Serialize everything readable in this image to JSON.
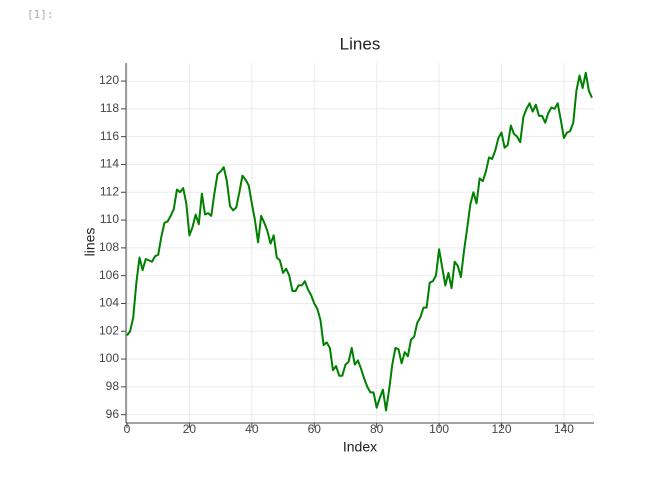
{
  "cell_prompt": "[1]:",
  "chart_data": {
    "type": "line",
    "title": "Lines",
    "xlabel": "Index",
    "ylabel": "lines",
    "x": [
      0,
      1,
      2,
      3,
      4,
      5,
      6,
      7,
      8,
      9,
      10,
      11,
      12,
      13,
      14,
      15,
      16,
      17,
      18,
      19,
      20,
      21,
      22,
      23,
      24,
      25,
      26,
      27,
      28,
      29,
      30,
      31,
      32,
      33,
      34,
      35,
      36,
      37,
      38,
      39,
      40,
      41,
      42,
      43,
      44,
      45,
      46,
      47,
      48,
      49,
      50,
      51,
      52,
      53,
      54,
      55,
      56,
      57,
      58,
      59,
      60,
      61,
      62,
      63,
      64,
      65,
      66,
      67,
      68,
      69,
      70,
      71,
      72,
      73,
      74,
      75,
      76,
      77,
      78,
      79,
      80,
      81,
      82,
      83,
      84,
      85,
      86,
      87,
      88,
      89,
      90,
      91,
      92,
      93,
      94,
      95,
      96,
      97,
      98,
      99,
      100,
      101,
      102,
      103,
      104,
      105,
      106,
      107,
      108,
      109,
      110,
      111,
      112,
      113,
      114,
      115,
      116,
      117,
      118,
      119,
      120,
      121,
      122,
      123,
      124,
      125,
      126,
      127,
      128,
      129,
      130,
      131,
      132,
      133,
      134,
      135,
      136,
      137,
      138,
      139,
      140,
      141,
      142,
      143,
      144,
      145,
      146,
      147,
      148,
      149
    ],
    "series": [
      {
        "name": "lines",
        "color": "#008000",
        "values": [
          101.7,
          102.0,
          103.0,
          105.5,
          107.3,
          106.4,
          107.2,
          107.1,
          107.0,
          107.4,
          107.5,
          108.8,
          109.8,
          109.9,
          110.3,
          110.8,
          112.2,
          112.0,
          112.3,
          111.2,
          108.9,
          109.5,
          110.4,
          109.7,
          111.9,
          110.4,
          110.5,
          110.3,
          111.9,
          113.3,
          113.5,
          113.8,
          112.8,
          111.0,
          110.7,
          110.9,
          112.0,
          113.2,
          112.9,
          112.5,
          111.2,
          110.0,
          108.4,
          110.3,
          109.8,
          109.2,
          108.3,
          108.9,
          107.3,
          107.1,
          106.2,
          106.5,
          106.0,
          104.9,
          104.9,
          105.3,
          105.3,
          105.6,
          105.0,
          104.6,
          104.0,
          103.6,
          102.8,
          101.0,
          101.2,
          100.8,
          99.2,
          99.5,
          98.8,
          98.8,
          99.6,
          99.8,
          100.8,
          99.6,
          99.9,
          99.3,
          98.6,
          98.0,
          97.6,
          97.6,
          96.5,
          97.2,
          97.8,
          96.3,
          97.8,
          99.6,
          100.8,
          100.7,
          99.7,
          100.5,
          100.2,
          101.4,
          101.6,
          102.6,
          103.0,
          103.7,
          103.7,
          105.5,
          105.6,
          106.0,
          107.9,
          106.6,
          105.3,
          106.2,
          105.1,
          107.0,
          106.7,
          105.9,
          107.8,
          109.4,
          111.1,
          112.0,
          111.2,
          113.0,
          112.8,
          113.5,
          114.5,
          114.4,
          115.0,
          115.9,
          116.3,
          115.2,
          115.4,
          116.8,
          116.2,
          116.0,
          115.6,
          117.4,
          118.0,
          118.4,
          117.8,
          118.3,
          117.5,
          117.5,
          117.0,
          117.7,
          118.1,
          118.0,
          118.4,
          117.2,
          115.9,
          116.3,
          116.4,
          117.0,
          119.3,
          120.4,
          119.5,
          120.6,
          119.3,
          118.8
        ]
      }
    ],
    "xlim": [
      0,
      149
    ],
    "ylim": [
      95.4,
      121.3
    ],
    "xticks": [
      0,
      20,
      40,
      60,
      80,
      100,
      120,
      140
    ],
    "yticks": [
      96,
      98,
      100,
      102,
      104,
      106,
      108,
      110,
      112,
      114,
      116,
      118,
      120
    ],
    "grid": true
  }
}
